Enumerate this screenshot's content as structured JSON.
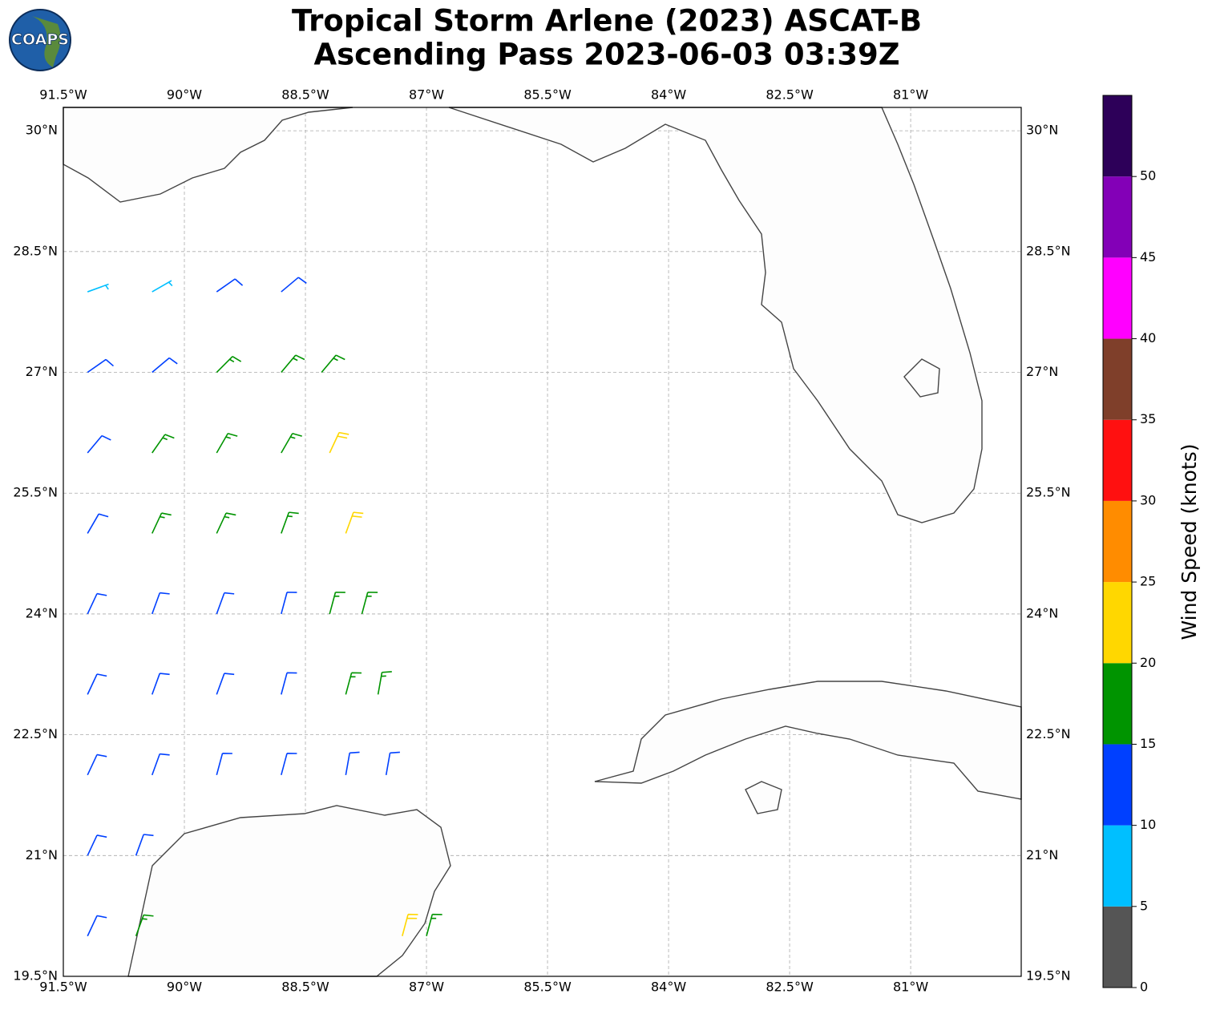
{
  "chart_data": {
    "type": "wind_barbs",
    "title": "Tropical Storm Arlene (2023) ASCAT-B",
    "subtitle": "Ascending Pass 2023-06-03 03:39Z",
    "logo_text": "COAPS",
    "xlim": [
      -91.5,
      -79.63
    ],
    "ylim": [
      19.5,
      30.29
    ],
    "xticks": [
      {
        "value": -91.5,
        "label": "91.5°W"
      },
      {
        "value": -90,
        "label": "90°W"
      },
      {
        "value": -88.5,
        "label": "88.5°W"
      },
      {
        "value": -87,
        "label": "87°W"
      },
      {
        "value": -85.5,
        "label": "85.5°W"
      },
      {
        "value": -84,
        "label": "84°W"
      },
      {
        "value": -82.5,
        "label": "82.5°W"
      },
      {
        "value": -81,
        "label": "81°W"
      }
    ],
    "yticks": [
      {
        "value": 30,
        "label": "30°N"
      },
      {
        "value": 28.5,
        "label": "28.5°N"
      },
      {
        "value": 27,
        "label": "27°N"
      },
      {
        "value": 25.5,
        "label": "25.5°N"
      },
      {
        "value": 24,
        "label": "24°N"
      },
      {
        "value": 22.5,
        "label": "22.5°N"
      },
      {
        "value": 21,
        "label": "21°N"
      },
      {
        "value": 19.5,
        "label": "19.5°N"
      }
    ],
    "grid": true,
    "colorbar": {
      "label": "Wind Speed (knots)",
      "lim": [
        0,
        55
      ],
      "ticks": [
        0,
        5,
        10,
        15,
        20,
        25,
        30,
        35,
        40,
        45,
        50
      ],
      "colors": [
        "#555555",
        "#00bfff",
        "#0040ff",
        "#009400",
        "#ffd700",
        "#ff8c00",
        "#ff1010",
        "#7f3f2a",
        "#ff00ff",
        "#8300b7",
        "#2d0059"
      ]
    },
    "barbs": [
      [
        -91.2,
        28.0,
        8,
        70
      ],
      [
        -90.4,
        28.0,
        9,
        60
      ],
      [
        -89.6,
        28.0,
        11,
        55
      ],
      [
        -88.8,
        28.0,
        13,
        50
      ],
      [
        -91.2,
        27.0,
        12,
        55
      ],
      [
        -90.4,
        27.0,
        13,
        50
      ],
      [
        -89.6,
        27.0,
        16,
        45
      ],
      [
        -88.8,
        27.0,
        17,
        40
      ],
      [
        -88.3,
        27.0,
        18,
        40
      ],
      [
        -91.2,
        26.0,
        14,
        40
      ],
      [
        -90.4,
        26.0,
        16,
        35
      ],
      [
        -89.6,
        26.0,
        17,
        30
      ],
      [
        -88.8,
        26.0,
        17,
        30
      ],
      [
        -88.2,
        26.0,
        22,
        25
      ],
      [
        -91.2,
        25.0,
        13,
        30
      ],
      [
        -90.4,
        25.0,
        15,
        25
      ],
      [
        -89.6,
        25.0,
        16,
        25
      ],
      [
        -88.8,
        25.0,
        16,
        20
      ],
      [
        -88.0,
        25.0,
        22,
        20
      ],
      [
        -91.2,
        24.0,
        12,
        25
      ],
      [
        -90.4,
        24.0,
        12,
        20
      ],
      [
        -89.6,
        24.0,
        13,
        20
      ],
      [
        -88.8,
        24.0,
        14,
        15
      ],
      [
        -88.2,
        24.0,
        17,
        15
      ],
      [
        -87.8,
        24.0,
        16,
        15
      ],
      [
        -91.2,
        23.0,
        12,
        25
      ],
      [
        -90.4,
        23.0,
        12,
        20
      ],
      [
        -89.6,
        23.0,
        12,
        20
      ],
      [
        -88.8,
        23.0,
        13,
        15
      ],
      [
        -88.0,
        23.0,
        17,
        15
      ],
      [
        -87.6,
        23.0,
        15,
        10
      ],
      [
        -91.2,
        22.0,
        12,
        25
      ],
      [
        -90.4,
        22.0,
        12,
        20
      ],
      [
        -89.6,
        22.0,
        12,
        15
      ],
      [
        -88.8,
        22.0,
        12,
        15
      ],
      [
        -88.0,
        22.0,
        13,
        10
      ],
      [
        -87.5,
        22.0,
        12,
        10
      ],
      [
        -91.2,
        21.0,
        12,
        25
      ],
      [
        -90.6,
        21.0,
        12,
        20
      ],
      [
        -91.2,
        20.0,
        12,
        25
      ],
      [
        -90.6,
        20.0,
        16,
        20
      ],
      [
        -87.0,
        20.0,
        17,
        15
      ],
      [
        -87.3,
        20.0,
        21,
        15
      ]
    ]
  }
}
